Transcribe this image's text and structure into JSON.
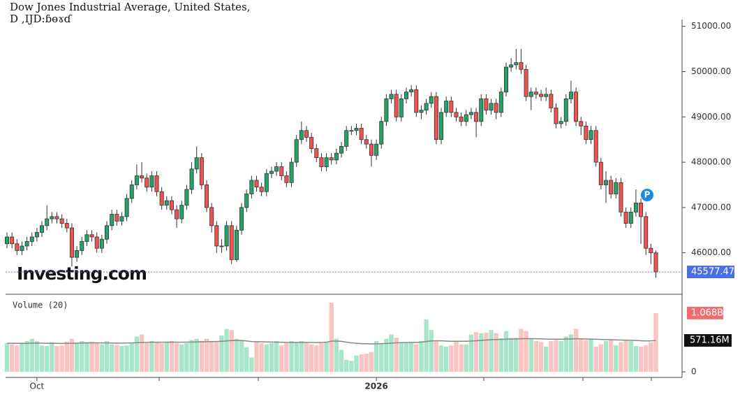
{
  "chart_data": {
    "type": "candlestick",
    "title": "Dow Jones Industrial Average, United States,",
    "subtitle": "D ,IJD:ɓɵɤɗ",
    "watermark": "Investing.com",
    "marker": "P",
    "categories": [
      null,
      null,
      null,
      null,
      null,
      null,
      "Oct",
      null,
      null,
      null,
      null,
      null,
      null,
      null,
      null,
      null,
      null,
      null,
      null,
      null,
      null,
      null,
      null,
      null,
      null,
      null,
      null,
      null,
      null,
      null,
      null,
      null,
      null,
      null,
      null,
      null,
      null,
      null,
      null,
      null,
      null,
      null,
      null,
      null,
      null,
      null,
      null,
      null,
      null,
      null,
      null,
      null,
      null,
      null,
      null,
      null,
      null,
      null,
      null,
      null,
      null,
      null,
      null,
      null,
      null,
      null,
      null,
      null,
      null,
      null,
      null,
      null,
      null,
      null,
      "2026",
      null,
      null,
      null,
      null,
      null,
      null,
      null,
      null,
      null,
      null,
      null,
      null,
      null,
      null,
      null,
      null,
      null,
      null,
      null,
      null,
      null,
      null,
      null,
      null,
      null,
      null,
      null,
      null,
      null,
      null,
      null,
      null,
      null,
      null,
      null,
      null,
      null,
      null,
      null,
      null,
      null,
      null,
      null,
      null,
      null,
      null,
      null,
      null,
      null,
      null,
      null,
      null,
      null,
      null,
      null,
      null
    ],
    "open": [
      46200,
      46350,
      46200,
      46050,
      46150,
      46250,
      46350,
      46450,
      46600,
      46750,
      46800,
      46750,
      46650,
      46550,
      45900,
      46050,
      46250,
      46400,
      46350,
      46100,
      46300,
      46600,
      46850,
      46700,
      46800,
      47200,
      47500,
      47700,
      47650,
      47450,
      47700,
      47350,
      47050,
      47150,
      46950,
      46750,
      47050,
      47400,
      47850,
      48100,
      47500,
      47000,
      46600,
      46150,
      46150,
      46600,
      45850,
      46500,
      47000,
      47300,
      47600,
      47450,
      47350,
      47750,
      47800,
      47900,
      47700,
      47550,
      48000,
      48500,
      48700,
      48550,
      48300,
      48100,
      47900,
      48100,
      48050,
      48200,
      48350,
      48700,
      48700,
      48750,
      48500,
      48400,
      48150,
      48400,
      48900,
      49400,
      49500,
      49000,
      49400,
      49550,
      49600,
      49100,
      49150,
      49300,
      49450,
      48500,
      49100,
      49350,
      49100,
      49000,
      48900,
      49050,
      49100,
      48900,
      49400,
      49150,
      49300,
      49100,
      49550,
      50100,
      50150,
      50200,
      50050,
      49450,
      49550,
      49500,
      49450,
      49500,
      49200,
      48850,
      48900,
      49400,
      49550,
      48900,
      48800,
      48500,
      48700,
      48000,
      47500,
      47600,
      47300,
      47550,
      46900,
      46650,
      46900,
      47100,
      46800,
      46100,
      46000
    ],
    "high": [
      46450,
      46450,
      46300,
      46250,
      46350,
      46450,
      46550,
      46700,
      47050,
      46900,
      46900,
      46850,
      46750,
      46650,
      46150,
      46350,
      46500,
      46500,
      46450,
      46400,
      46700,
      46950,
      46950,
      46900,
      47300,
      47600,
      47950,
      48000,
      47750,
      47800,
      47800,
      47450,
      47250,
      47250,
      47050,
      47150,
      47500,
      48000,
      48350,
      48200,
      47600,
      47100,
      46700,
      46300,
      46700,
      46700,
      46600,
      47100,
      47400,
      47700,
      47700,
      47550,
      47850,
      47900,
      48000,
      48000,
      47800,
      48100,
      48600,
      48900,
      48800,
      48650,
      48400,
      48200,
      48200,
      48200,
      48300,
      48450,
      48800,
      48800,
      48850,
      48850,
      48600,
      48500,
      48500,
      49000,
      49500,
      49600,
      49600,
      49500,
      49650,
      49700,
      49700,
      49250,
      49400,
      49550,
      49550,
      49200,
      49450,
      49450,
      49200,
      49100,
      49150,
      49200,
      49200,
      49500,
      49500,
      49400,
      49400,
      49650,
      50200,
      50300,
      50500,
      50500,
      50150,
      49650,
      49650,
      49600,
      49650,
      49600,
      49300,
      49000,
      49500,
      49800,
      49650,
      49000,
      48900,
      48800,
      48800,
      48100,
      47800,
      47700,
      47650,
      47650,
      47000,
      47000,
      47400,
      47200,
      46900,
      46200,
      46050
    ],
    "low": [
      46100,
      46100,
      45950,
      45950,
      46050,
      46150,
      46250,
      46350,
      46500,
      46650,
      46650,
      46550,
      46450,
      45700,
      45800,
      45950,
      46150,
      46250,
      46000,
      46000,
      46200,
      46500,
      46600,
      46600,
      46700,
      47100,
      47400,
      47550,
      47350,
      47350,
      47250,
      46950,
      46950,
      46850,
      46550,
      46650,
      46950,
      47300,
      47750,
      47400,
      46900,
      46450,
      46000,
      46000,
      46050,
      45750,
      45800,
      46400,
      46900,
      47200,
      47350,
      47250,
      47250,
      47650,
      47700,
      47600,
      47450,
      47450,
      47900,
      48400,
      48450,
      48200,
      48000,
      47800,
      47800,
      47950,
      47950,
      48100,
      48250,
      48600,
      48600,
      48400,
      48300,
      47900,
      48050,
      48300,
      48800,
      49300,
      48900,
      48900,
      49300,
      49450,
      49000,
      48950,
      49050,
      49200,
      48400,
      48400,
      49000,
      49000,
      48900,
      48800,
      48800,
      48950,
      48550,
      48800,
      49050,
      49050,
      48950,
      49000,
      49450,
      50000,
      50050,
      49950,
      49350,
      49150,
      49400,
      49350,
      49350,
      49100,
      48750,
      48750,
      48800,
      49300,
      48800,
      48600,
      48400,
      48400,
      47900,
      47400,
      47100,
      47200,
      47200,
      46800,
      46550,
      46550,
      46800,
      46200,
      45950,
      45750,
      45450
    ],
    "close": [
      46350,
      46200,
      46050,
      46150,
      46250,
      46350,
      46450,
      46600,
      46750,
      46800,
      46750,
      46650,
      46550,
      45900,
      46050,
      46250,
      46400,
      46350,
      46100,
      46300,
      46600,
      46850,
      46700,
      46800,
      47200,
      47500,
      47700,
      47650,
      47450,
      47700,
      47350,
      47050,
      47150,
      46950,
      46750,
      47050,
      47400,
      47850,
      48100,
      47500,
      47000,
      46600,
      46150,
      46150,
      46600,
      45850,
      46500,
      47000,
      47300,
      47600,
      47450,
      47350,
      47750,
      47800,
      47900,
      47700,
      47550,
      48000,
      48500,
      48700,
      48550,
      48300,
      48100,
      47900,
      48100,
      48050,
      48200,
      48350,
      48700,
      48700,
      48750,
      48500,
      48400,
      48150,
      48400,
      48900,
      49400,
      49500,
      49000,
      49400,
      49550,
      49600,
      49100,
      49150,
      49300,
      49450,
      48500,
      49100,
      49350,
      49100,
      49000,
      48900,
      49050,
      49100,
      48900,
      49400,
      49150,
      49300,
      49100,
      49550,
      50100,
      50150,
      50200,
      50050,
      49450,
      49550,
      49500,
      49450,
      49500,
      49200,
      48850,
      48900,
      49400,
      49550,
      48900,
      48800,
      48500,
      48700,
      48000,
      47500,
      47600,
      47300,
      47550,
      46900,
      46650,
      46900,
      47100,
      46800,
      46100,
      46000,
      45577.47
    ],
    "ylim": [
      45100,
      51150
    ],
    "yticks": [
      {
        "value": 46000,
        "label": "46000.00"
      },
      {
        "value": 47000,
        "label": "47000.00"
      },
      {
        "value": 48000,
        "label": "48000.00"
      },
      {
        "value": 49000,
        "label": "49000.00"
      },
      {
        "value": 50000,
        "label": "50000.00"
      },
      {
        "value": 51000,
        "label": "51000.00"
      }
    ],
    "up_color": "#26a269",
    "down_color": "#ef5350",
    "last_color": "#4a6fe0",
    "volume": {
      "title": "Volume (20)",
      "values": [
        520,
        500,
        480,
        530,
        560,
        600,
        560,
        480,
        470,
        540,
        470,
        480,
        550,
        600,
        530,
        560,
        540,
        550,
        520,
        500,
        560,
        500,
        490,
        470,
        480,
        520,
        640,
        680,
        520,
        560,
        530,
        520,
        540,
        560,
        520,
        500,
        520,
        580,
        600,
        560,
        600,
        560,
        540,
        660,
        780,
        760,
        600,
        560,
        450,
        260,
        540,
        520,
        500,
        520,
        560,
        480,
        520,
        560,
        540,
        560,
        520,
        500,
        480,
        520,
        550,
        1256,
        600,
        400,
        220,
        200,
        300,
        320,
        330,
        360,
        560,
        500,
        600,
        680,
        620,
        520,
        520,
        540,
        500,
        560,
        950,
        760,
        550,
        480,
        460,
        480,
        560,
        500,
        500,
        680,
        720,
        700,
        710,
        760,
        700,
        610,
        740,
        620,
        620,
        780,
        740,
        600,
        560,
        540,
        460,
        560,
        580,
        560,
        640,
        680,
        780,
        600,
        580,
        600,
        460,
        500,
        560,
        580,
        480,
        540,
        580,
        560,
        470,
        460,
        480,
        540,
        1068
      ],
      "ma": [
        520,
        520,
        518,
        518,
        520,
        522,
        524,
        522,
        520,
        520,
        518,
        516,
        518,
        520,
        522,
        524,
        526,
        528,
        528,
        526,
        526,
        524,
        522,
        522,
        524,
        526,
        530,
        534,
        536,
        538,
        538,
        538,
        540,
        540,
        538,
        538,
        540,
        542,
        544,
        546,
        548,
        550,
        552,
        556,
        562,
        568,
        570,
        568,
        562,
        550,
        548,
        546,
        544,
        542,
        540,
        538,
        536,
        536,
        536,
        536,
        536,
        534,
        532,
        534,
        538,
        560,
        560,
        554,
        540,
        528,
        520,
        514,
        510,
        508,
        510,
        512,
        516,
        522,
        528,
        530,
        532,
        534,
        536,
        540,
        552,
        562,
        566,
        564,
        560,
        556,
        556,
        556,
        556,
        560,
        566,
        572,
        578,
        584,
        588,
        590,
        594,
        596,
        598,
        602,
        604,
        604,
        602,
        600,
        596,
        594,
        594,
        594,
        596,
        598,
        602,
        600,
        598,
        596,
        592,
        590,
        586,
        584,
        580,
        578,
        576,
        574,
        570,
        566,
        562,
        564,
        571.16
      ],
      "last_label": "1.068B",
      "ma_label": "571.16M",
      "ylim": [
        -100,
        1396
      ],
      "yticks": [
        0
      ],
      "up_color": "#a8e6cc",
      "down_color": "#f9c4c4",
      "ma_color": "#888888"
    }
  }
}
